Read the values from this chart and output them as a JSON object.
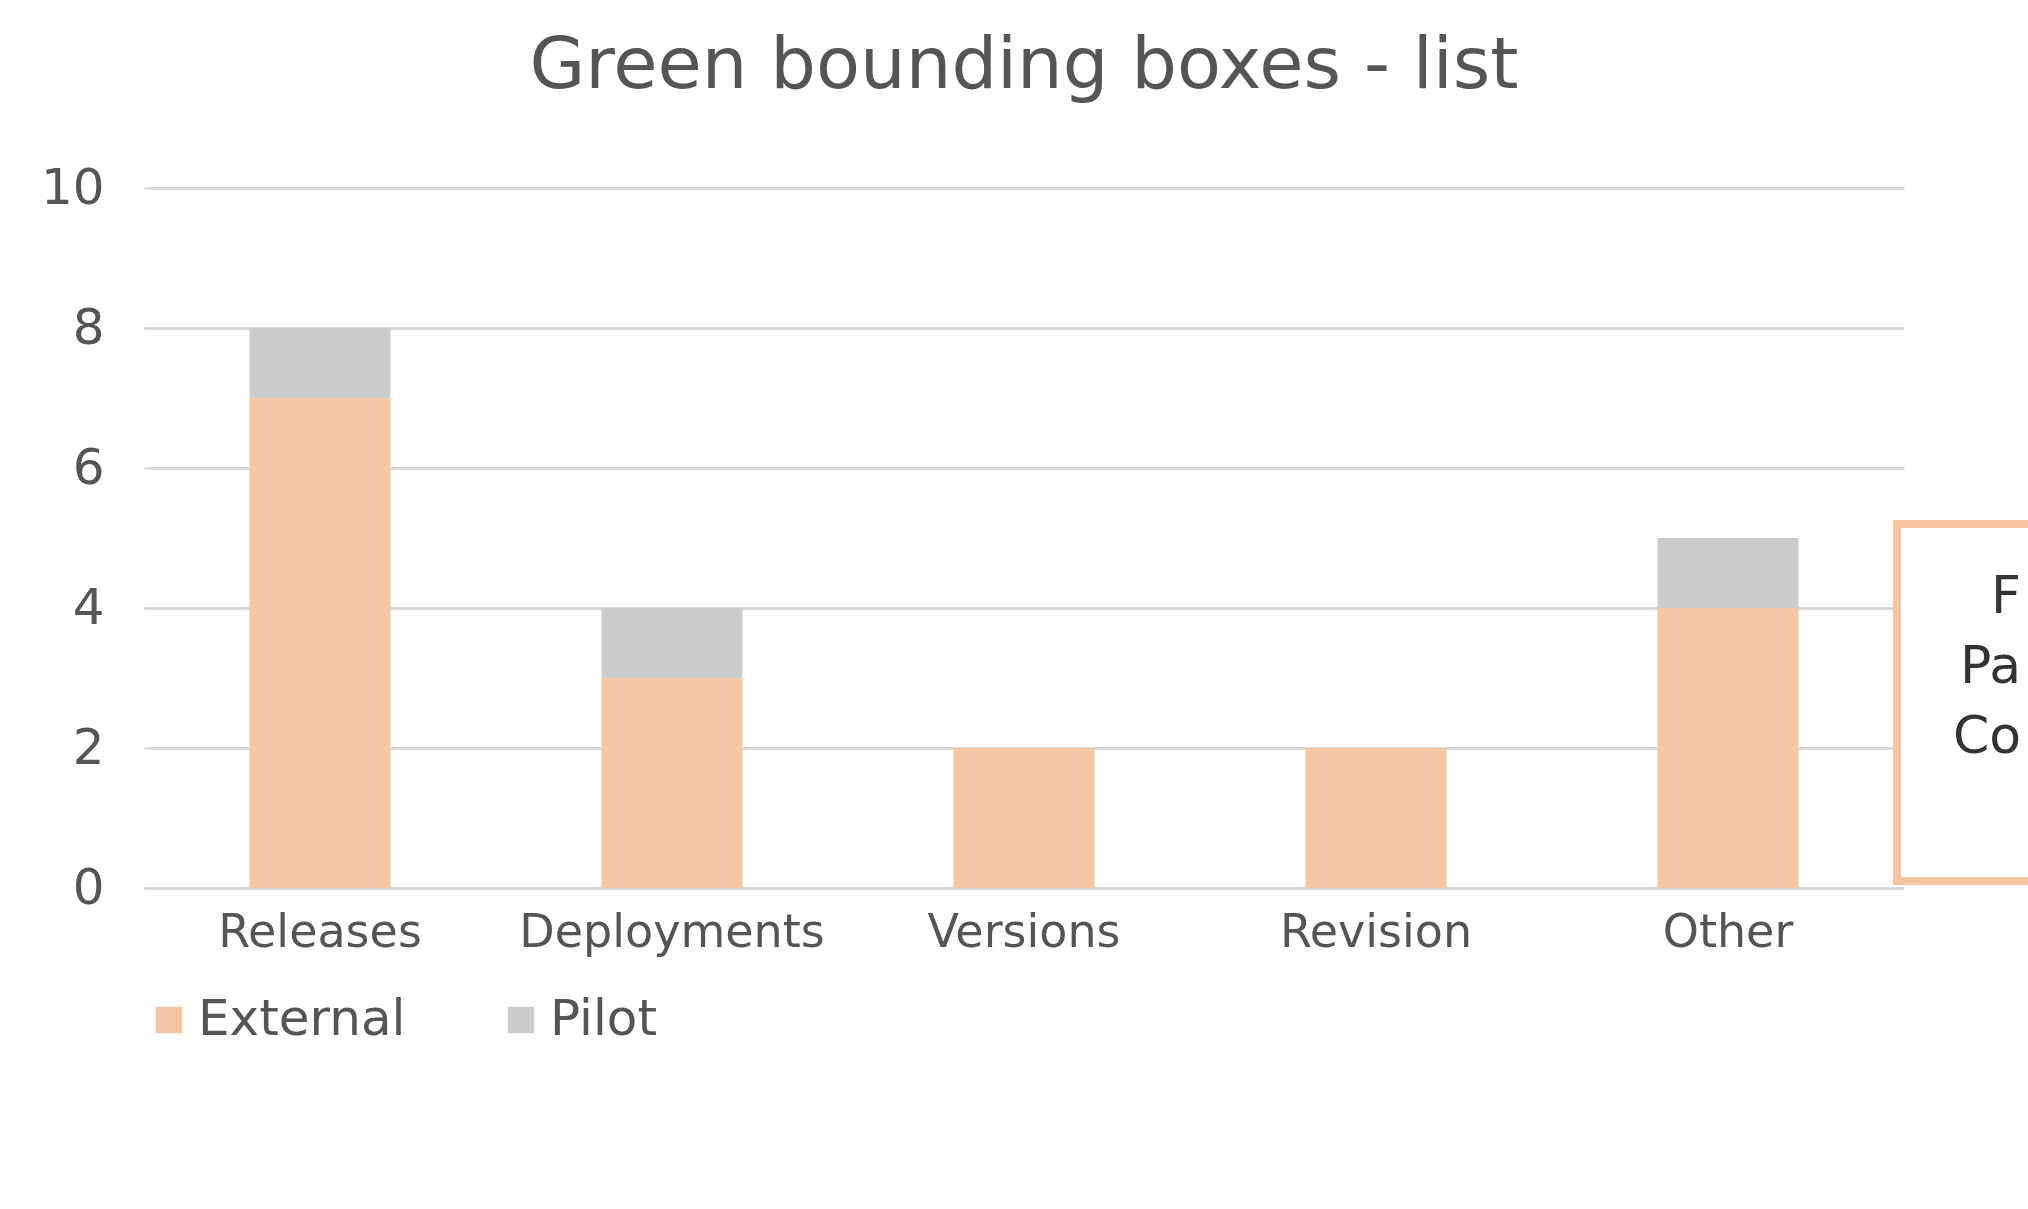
{
  "chart_data": {
    "type": "bar",
    "title": "Green bounding boxes - list",
    "categories": [
      "Releases",
      "Deployments",
      "Versions",
      "Revision",
      "Other"
    ],
    "series": [
      {
        "name": "External",
        "color": "#f4c7a6",
        "values": [
          7,
          3,
          2,
          2,
          4
        ]
      },
      {
        "name": "Pilot",
        "color": "#cbcbcb",
        "values": [
          1,
          1,
          0,
          0,
          1
        ]
      }
    ],
    "stacked": true,
    "ylim": [
      0,
      10
    ],
    "yticks": [
      0,
      2,
      4,
      6,
      8,
      10
    ],
    "grid": "y",
    "legend": "bottom",
    "annotations": [
      "F",
      "Pa",
      "Co"
    ]
  }
}
